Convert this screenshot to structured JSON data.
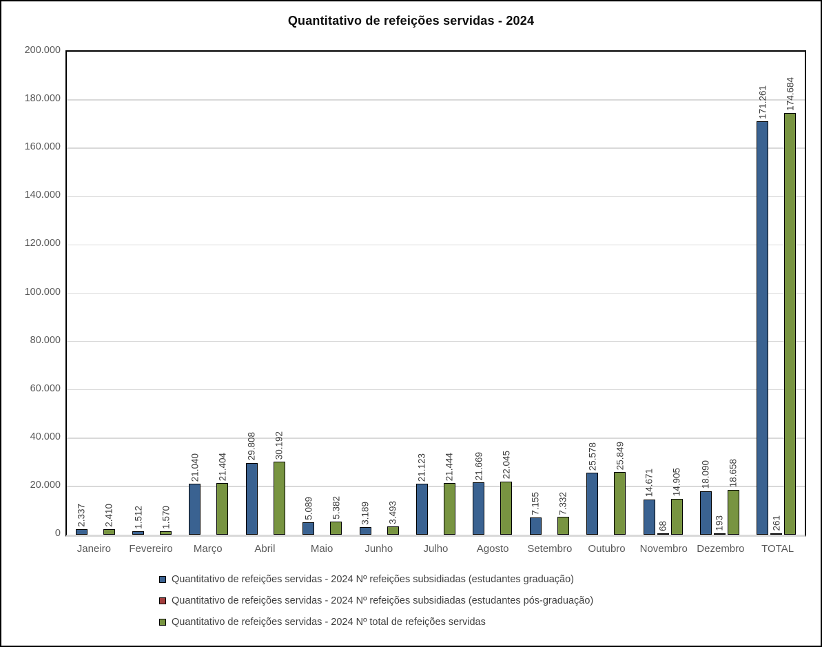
{
  "title": "Quantitativo de refeições servidas - 2024",
  "colors": {
    "series_graduacao": "#3a6291",
    "series_pos_graduacao": "#a33e3d",
    "series_total": "#789441",
    "gridline": "#d9d9d9",
    "axis_text": "#595959",
    "data_label_text": "#3d3d3d",
    "bar_border": "#000000",
    "frame_border": "#000000"
  },
  "chart_data": {
    "type": "bar",
    "title": "Quantitativo de refeições servidas - 2024",
    "categories": [
      "Janeiro",
      "Fevereiro",
      "Março",
      "Abril",
      "Maio",
      "Junho",
      "Julho",
      "Agosto",
      "Setembro",
      "Outubro",
      "Novembro",
      "Dezembro",
      "TOTAL"
    ],
    "series": [
      {
        "name": "Quantitativo de refeições servidas - 2024 Nº refeições subsidiadas (estudantes graduação)",
        "color": "#3a6291",
        "values": [
          2337,
          1512,
          21040,
          29808,
          5089,
          3189,
          21123,
          21669,
          7155,
          25578,
          14671,
          18090,
          171261
        ],
        "labels": [
          "2.337",
          "1.512",
          "21.040",
          "29.808",
          "5.089",
          "3.189",
          "21.123",
          "21.669",
          "7.155",
          "25.578",
          "14.671",
          "18.090",
          "171.261"
        ]
      },
      {
        "name": "Quantitativo de refeições servidas - 2024 Nº refeições subsidiadas (estudantes pós-graduação)",
        "color": "#a33e3d",
        "values": [
          0,
          0,
          0,
          0,
          0,
          0,
          0,
          0,
          0,
          0,
          68,
          193,
          261
        ],
        "labels": [
          "",
          "",
          "",
          "",
          "",
          "",
          "",
          "",
          "",
          "",
          "68",
          "193",
          "261"
        ]
      },
      {
        "name": "Quantitativo de refeições servidas - 2024 Nº total de refeições servidas",
        "color": "#789441",
        "values": [
          2410,
          1570,
          21404,
          30192,
          5382,
          3493,
          21444,
          22045,
          7332,
          25849,
          14905,
          18658,
          174684
        ],
        "labels": [
          "2.410",
          "1.570",
          "21.404",
          "30.192",
          "5.382",
          "3.493",
          "21.444",
          "22.045",
          "7.332",
          "25.849",
          "14.905",
          "18.658",
          "174.684"
        ]
      }
    ],
    "ylim": [
      0,
      200000
    ],
    "ytick_step": 20000,
    "ytick_labels_top_to_bottom": [
      "200.000",
      "180.000",
      "160.000",
      "140.000",
      "120.000",
      "100.000",
      "80.000",
      "60.000",
      "40.000",
      "20.000",
      "0"
    ],
    "grid": true,
    "legend_position": "bottom",
    "xlabel": "",
    "ylabel": ""
  }
}
